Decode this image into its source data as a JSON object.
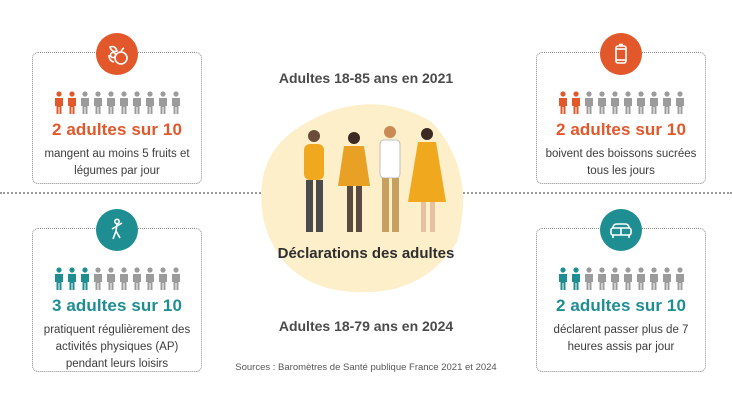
{
  "colors": {
    "orange": "#e2582b",
    "teal": "#1e8e92",
    "gray": "#9b9b9b",
    "blob": "#fcefc9",
    "mustard": "#e0a526"
  },
  "center": {
    "title_top": "Adultes 18-85 ans en 2021",
    "title_bottom": "Adultes 18-79 ans en 2024",
    "label": "Déclarations des adultes"
  },
  "sources": "Sources : Baromètres de Santé publique France 2021 et 2024",
  "cards": [
    {
      "id": "fruits",
      "icon": "fruits-icon",
      "color": "orange",
      "filled": 2,
      "total": 10,
      "stat": "2 adultes sur 10",
      "desc": "mangent au moins 5 fruits et légumes par jour"
    },
    {
      "id": "drinks",
      "icon": "soda-can-icon",
      "color": "orange",
      "filled": 2,
      "total": 10,
      "stat": "2 adultes sur 10",
      "desc": "boivent des boissons sucrées tous les jours"
    },
    {
      "id": "activity",
      "icon": "exercise-icon",
      "color": "teal",
      "filled": 3,
      "total": 10,
      "stat": "3 adultes sur 10",
      "desc": "pratiquent régulièrement des activités physiques (AP) pendant leurs loisirs"
    },
    {
      "id": "sitting",
      "icon": "sofa-icon",
      "color": "teal",
      "filled": 2,
      "total": 10,
      "stat": "2 adultes sur 10",
      "desc": "déclarent passer plus de 7 heures assis par jour"
    }
  ]
}
